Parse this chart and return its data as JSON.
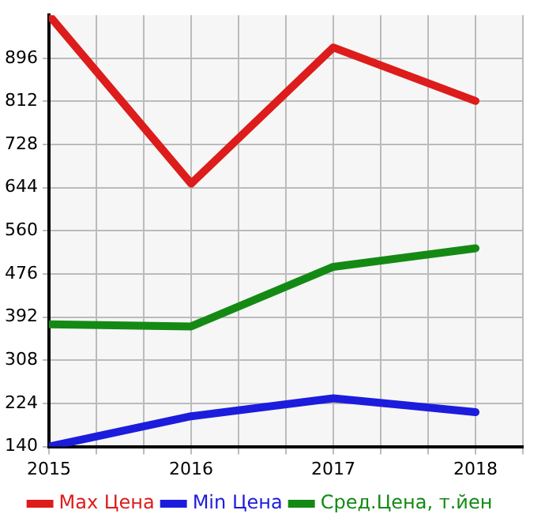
{
  "chart_data": {
    "type": "line",
    "x": [
      2015,
      2016,
      2017,
      2018
    ],
    "xlim": [
      2015,
      2018.3333
    ],
    "xticks": [
      2015,
      {
        "value": 2015.3333,
        "label": null
      },
      {
        "value": 2015.6667,
        "label": null
      },
      2016,
      {
        "value": 2016.3333,
        "label": null
      },
      {
        "value": 2016.6667,
        "label": null
      },
      2017,
      {
        "value": 2017.3333,
        "label": null
      },
      {
        "value": 2017.6667,
        "label": null
      },
      2018,
      {
        "value": 2018.3333,
        "label": null
      }
    ],
    "ylim": [
      140,
      980
    ],
    "yticks": [
      140,
      224,
      308,
      392,
      476,
      560,
      644,
      728,
      812,
      896
    ],
    "series": [
      {
        "name": "Max Цена",
        "color": "#dd1c1c",
        "values": [
          980,
          652,
          917,
          813
        ]
      },
      {
        "name": "Min Цена",
        "color": "#1c1cdd",
        "values": [
          140,
          199,
          234,
          207
        ]
      },
      {
        "name": "Сред.Цена, т.йен",
        "color": "#148a14",
        "values": [
          378,
          374,
          490,
          526
        ]
      }
    ],
    "grid": true,
    "legend": "bottom",
    "marker": "none",
    "line_style": "solid"
  }
}
